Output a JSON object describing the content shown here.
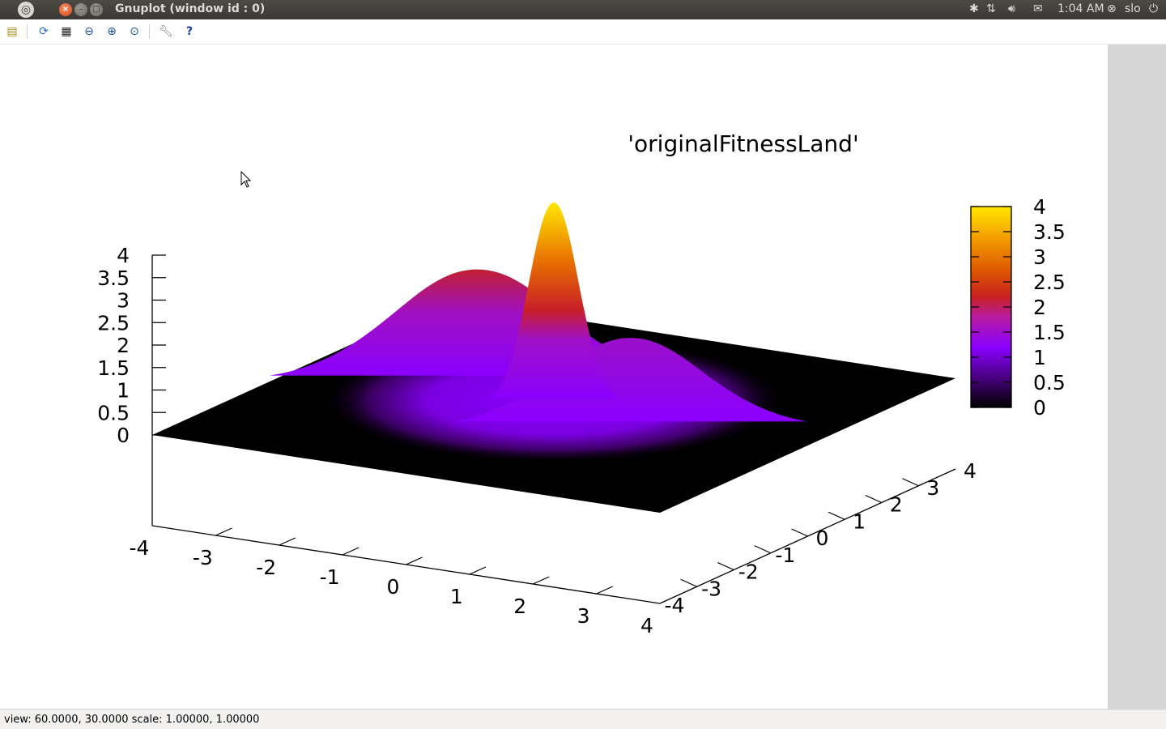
{
  "window": {
    "title": "Gnuplot (window id : 0)",
    "close_glyph": "×",
    "minimize_glyph": "–",
    "maximize_glyph": "□"
  },
  "tray": {
    "time": "1:04 AM",
    "user": "slo",
    "icons": [
      "bluetooth-icon",
      "network-icon",
      "volume-icon",
      "mail-icon",
      "user-status-icon",
      "power-icon"
    ]
  },
  "toolbar": {
    "icons": [
      "export-icon",
      "replot-icon",
      "grid-icon",
      "zoom-prev-icon",
      "zoom-next-icon",
      "autoscale-icon",
      "settings-icon",
      "help-icon"
    ]
  },
  "status": {
    "text": "view: 60.0000,  30.0000   scale: 1.00000,  1.00000"
  },
  "chart_data": {
    "type": "surface",
    "title": "'originalFitnessLand'",
    "x_ticks": [
      "-4",
      "-3",
      "-2",
      "-1",
      "0",
      "1",
      "2",
      "3",
      "4"
    ],
    "y_ticks": [
      "-4",
      "-3",
      "-2",
      "-1",
      "0",
      "1",
      "2",
      "3",
      "4"
    ],
    "z_ticks": [
      "0",
      "0.5",
      "1",
      "1.5",
      "2",
      "2.5",
      "3",
      "3.5",
      "4"
    ],
    "colorbox_ticks": [
      "0",
      "0.5",
      "1",
      "1.5",
      "2",
      "2.5",
      "3",
      "3.5",
      "4"
    ],
    "xlim": [
      -4,
      4
    ],
    "ylim": [
      -4,
      4
    ],
    "zlim": [
      0,
      4
    ],
    "view": [
      60,
      30
    ],
    "peaks": [
      {
        "x": 0.0,
        "y": 0.0,
        "height": 4.0
      },
      {
        "x": -1.5,
        "y": 0.5,
        "height": 2.0
      },
      {
        "x": 1.5,
        "y": -0.5,
        "height": 1.5
      }
    ],
    "palette": [
      "#000000",
      "#5a00a0",
      "#8a00ff",
      "#b81ca0",
      "#d84000",
      "#f09000",
      "#ffe800"
    ]
  }
}
